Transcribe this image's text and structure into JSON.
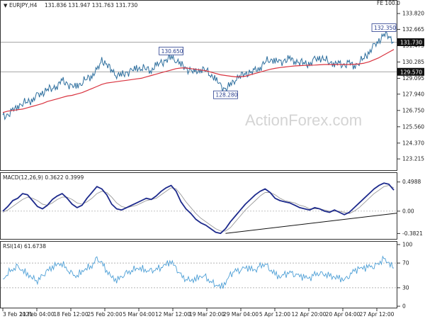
{
  "colors": {
    "price": "#2e6f9e",
    "ma": "#d9333f",
    "macd": "#1d2a8c",
    "signal": "#9a9a9a",
    "rsi": "#4d9fd6",
    "hline": "#888888",
    "trend": "#111111",
    "annot_bg": "#ffffff",
    "annot_border": "#2a3f8f",
    "annot_text": "#2a3f8f",
    "tag_bg": "#111111",
    "tag_text": "#ffffff"
  },
  "header": {
    "symbol": "EURJPY,H4",
    "ohlc": "131.836 131.947 131.763 131.730",
    "fe_label": "FE 100.0"
  },
  "watermark": "ActionForex.com",
  "chart_data": [
    {
      "type": "line",
      "panel": "price",
      "ylim": [
        122.5,
        134.6
      ],
      "y_ticks": [
        "133.820",
        "132.665",
        "131.475",
        "130.285",
        "129.095",
        "127.940",
        "126.750",
        "125.560",
        "124.370",
        "123.215"
      ],
      "series": [
        {
          "role": "price",
          "values": [
            126.3,
            126.4,
            126.7,
            127.1,
            127.3,
            127.4,
            127.5,
            127.8,
            128.0,
            128.3,
            128.4,
            128.6,
            128.9,
            128.7,
            128.4,
            128.6,
            128.8,
            129.1,
            129.3,
            129.6,
            130.4,
            130.1,
            129.7,
            129.4,
            129.3,
            129.5,
            129.6,
            129.8,
            129.9,
            129.8,
            129.7,
            130.0,
            130.2,
            130.4,
            130.65,
            130.5,
            130.1,
            129.8,
            129.6,
            129.5,
            129.8,
            129.7,
            129.4,
            129.0,
            128.5,
            128.28,
            128.6,
            129.1,
            129.3,
            129.4,
            129.5,
            129.6,
            129.9,
            130.3,
            130.5,
            130.4,
            130.2,
            130.4,
            130.5,
            130.4,
            130.3,
            130.2,
            130.1,
            130.4,
            130.6,
            130.5,
            130.3,
            130.2,
            130.1,
            130.05,
            130.2,
            130.0,
            130.3,
            130.6,
            131.0,
            131.4,
            131.8,
            132.35,
            132.2,
            131.73
          ]
        },
        {
          "role": "ma",
          "values": [
            126.6,
            126.7,
            126.75,
            126.8,
            126.85,
            126.95,
            127.05,
            127.15,
            127.25,
            127.4,
            127.5,
            127.6,
            127.7,
            127.8,
            127.85,
            127.95,
            128.05,
            128.2,
            128.35,
            128.5,
            128.65,
            128.75,
            128.8,
            128.85,
            128.9,
            128.95,
            129.0,
            129.05,
            129.1,
            129.2,
            129.3,
            129.4,
            129.5,
            129.6,
            129.7,
            129.8,
            129.85,
            129.85,
            129.8,
            129.75,
            129.7,
            129.65,
            129.55,
            129.45,
            129.35,
            129.3,
            129.25,
            129.2,
            129.2,
            129.25,
            129.35,
            129.45,
            129.55,
            129.65,
            129.75,
            129.82,
            129.88,
            129.92,
            129.96,
            130.0,
            130.02,
            130.04,
            130.05,
            130.06,
            130.08,
            130.1,
            130.1,
            130.1,
            130.1,
            130.1,
            130.1,
            130.12,
            130.15,
            130.2,
            130.3,
            130.45,
            130.6,
            130.8,
            131.0,
            131.2
          ]
        }
      ],
      "hlines": [
        131.73,
        129.57
      ],
      "price_tags": [
        "131.730",
        "129.570"
      ],
      "annotations": [
        {
          "text": "130.650",
          "x_index": 34,
          "y": 130.65
        },
        {
          "text": "128.280",
          "x_index": 45,
          "y": 128.28
        },
        {
          "text": "132.350",
          "x_index": 77,
          "y": 132.35
        }
      ],
      "x_labels": [
        "3 Feb 2021",
        "11 Feb 04:00",
        "18 Feb 12:00",
        "25 Feb 20:00",
        "5 Mar 04:00",
        "12 Mar 12:00",
        "19 Mar 20:00",
        "29 Mar 04:00",
        "5 Apr 12:00",
        "12 Apr 20:00",
        "20 Apr 04:00",
        "27 Apr 12:00"
      ]
    },
    {
      "type": "line",
      "panel": "macd",
      "title": "MACD(12,26,9) 0.3622 0.3999",
      "ylim": [
        -0.45,
        0.58
      ],
      "y_ticks": [
        "0.4988",
        "0.00",
        "-0.3821"
      ],
      "series": [
        {
          "role": "macd",
          "values": [
            0.0,
            0.08,
            0.18,
            0.22,
            0.3,
            0.28,
            0.18,
            0.08,
            0.04,
            0.1,
            0.2,
            0.26,
            0.3,
            0.22,
            0.12,
            0.06,
            0.1,
            0.22,
            0.32,
            0.42,
            0.38,
            0.28,
            0.12,
            0.04,
            0.02,
            0.06,
            0.1,
            0.14,
            0.18,
            0.22,
            0.2,
            0.26,
            0.34,
            0.4,
            0.44,
            0.34,
            0.16,
            0.04,
            -0.04,
            -0.14,
            -0.2,
            -0.24,
            -0.3,
            -0.36,
            -0.38,
            -0.3,
            -0.18,
            -0.08,
            0.02,
            0.12,
            0.2,
            0.28,
            0.34,
            0.38,
            0.32,
            0.22,
            0.18,
            0.16,
            0.14,
            0.1,
            0.06,
            0.04,
            0.02,
            0.06,
            0.04,
            0.0,
            -0.02,
            0.02,
            -0.02,
            -0.06,
            -0.02,
            0.06,
            0.14,
            0.22,
            0.3,
            0.38,
            0.44,
            0.48,
            0.46,
            0.36
          ]
        },
        {
          "role": "signal",
          "values": [
            -0.02,
            0.02,
            0.08,
            0.14,
            0.2,
            0.24,
            0.22,
            0.18,
            0.12,
            0.1,
            0.14,
            0.2,
            0.24,
            0.24,
            0.2,
            0.14,
            0.12,
            0.16,
            0.22,
            0.3,
            0.34,
            0.32,
            0.24,
            0.14,
            0.08,
            0.06,
            0.08,
            0.1,
            0.14,
            0.18,
            0.2,
            0.22,
            0.28,
            0.34,
            0.4,
            0.38,
            0.28,
            0.16,
            0.06,
            -0.04,
            -0.12,
            -0.18,
            -0.24,
            -0.3,
            -0.34,
            -0.34,
            -0.28,
            -0.18,
            -0.08,
            0.02,
            0.1,
            0.18,
            0.26,
            0.32,
            0.32,
            0.28,
            0.22,
            0.18,
            0.16,
            0.14,
            0.1,
            0.08,
            0.04,
            0.04,
            0.04,
            0.02,
            0.0,
            0.0,
            0.0,
            -0.02,
            -0.04,
            0.0,
            0.06,
            0.14,
            0.22,
            0.3,
            0.36,
            0.42,
            0.44,
            0.4
          ]
        }
      ],
      "trendline": {
        "from_index": 45,
        "from_y": -0.38,
        "to_index": 79,
        "to_y": -0.04
      }
    },
    {
      "type": "line",
      "panel": "rsi",
      "title": "RSI(14) 61.6738",
      "ylim": [
        0,
        100
      ],
      "y_ticks": [
        "100",
        "70",
        "30",
        "0"
      ],
      "levels": [
        70,
        30
      ],
      "series": [
        {
          "role": "rsi",
          "values": [
            42,
            55,
            60,
            63,
            58,
            52,
            46,
            42,
            48,
            57,
            64,
            68,
            70,
            59,
            51,
            49,
            57,
            62,
            66,
            76,
            70,
            58,
            47,
            43,
            47,
            53,
            58,
            62,
            61,
            58,
            56,
            60,
            64,
            68,
            73,
            61,
            49,
            45,
            42,
            44,
            49,
            46,
            40,
            36,
            31,
            38,
            51,
            57,
            60,
            63,
            61,
            58,
            64,
            70,
            60,
            52,
            47,
            51,
            55,
            53,
            49,
            47,
            45,
            51,
            55,
            52,
            49,
            47,
            45,
            43,
            51,
            57,
            61,
            62,
            64,
            66,
            70,
            76,
            70,
            62
          ]
        }
      ]
    }
  ]
}
